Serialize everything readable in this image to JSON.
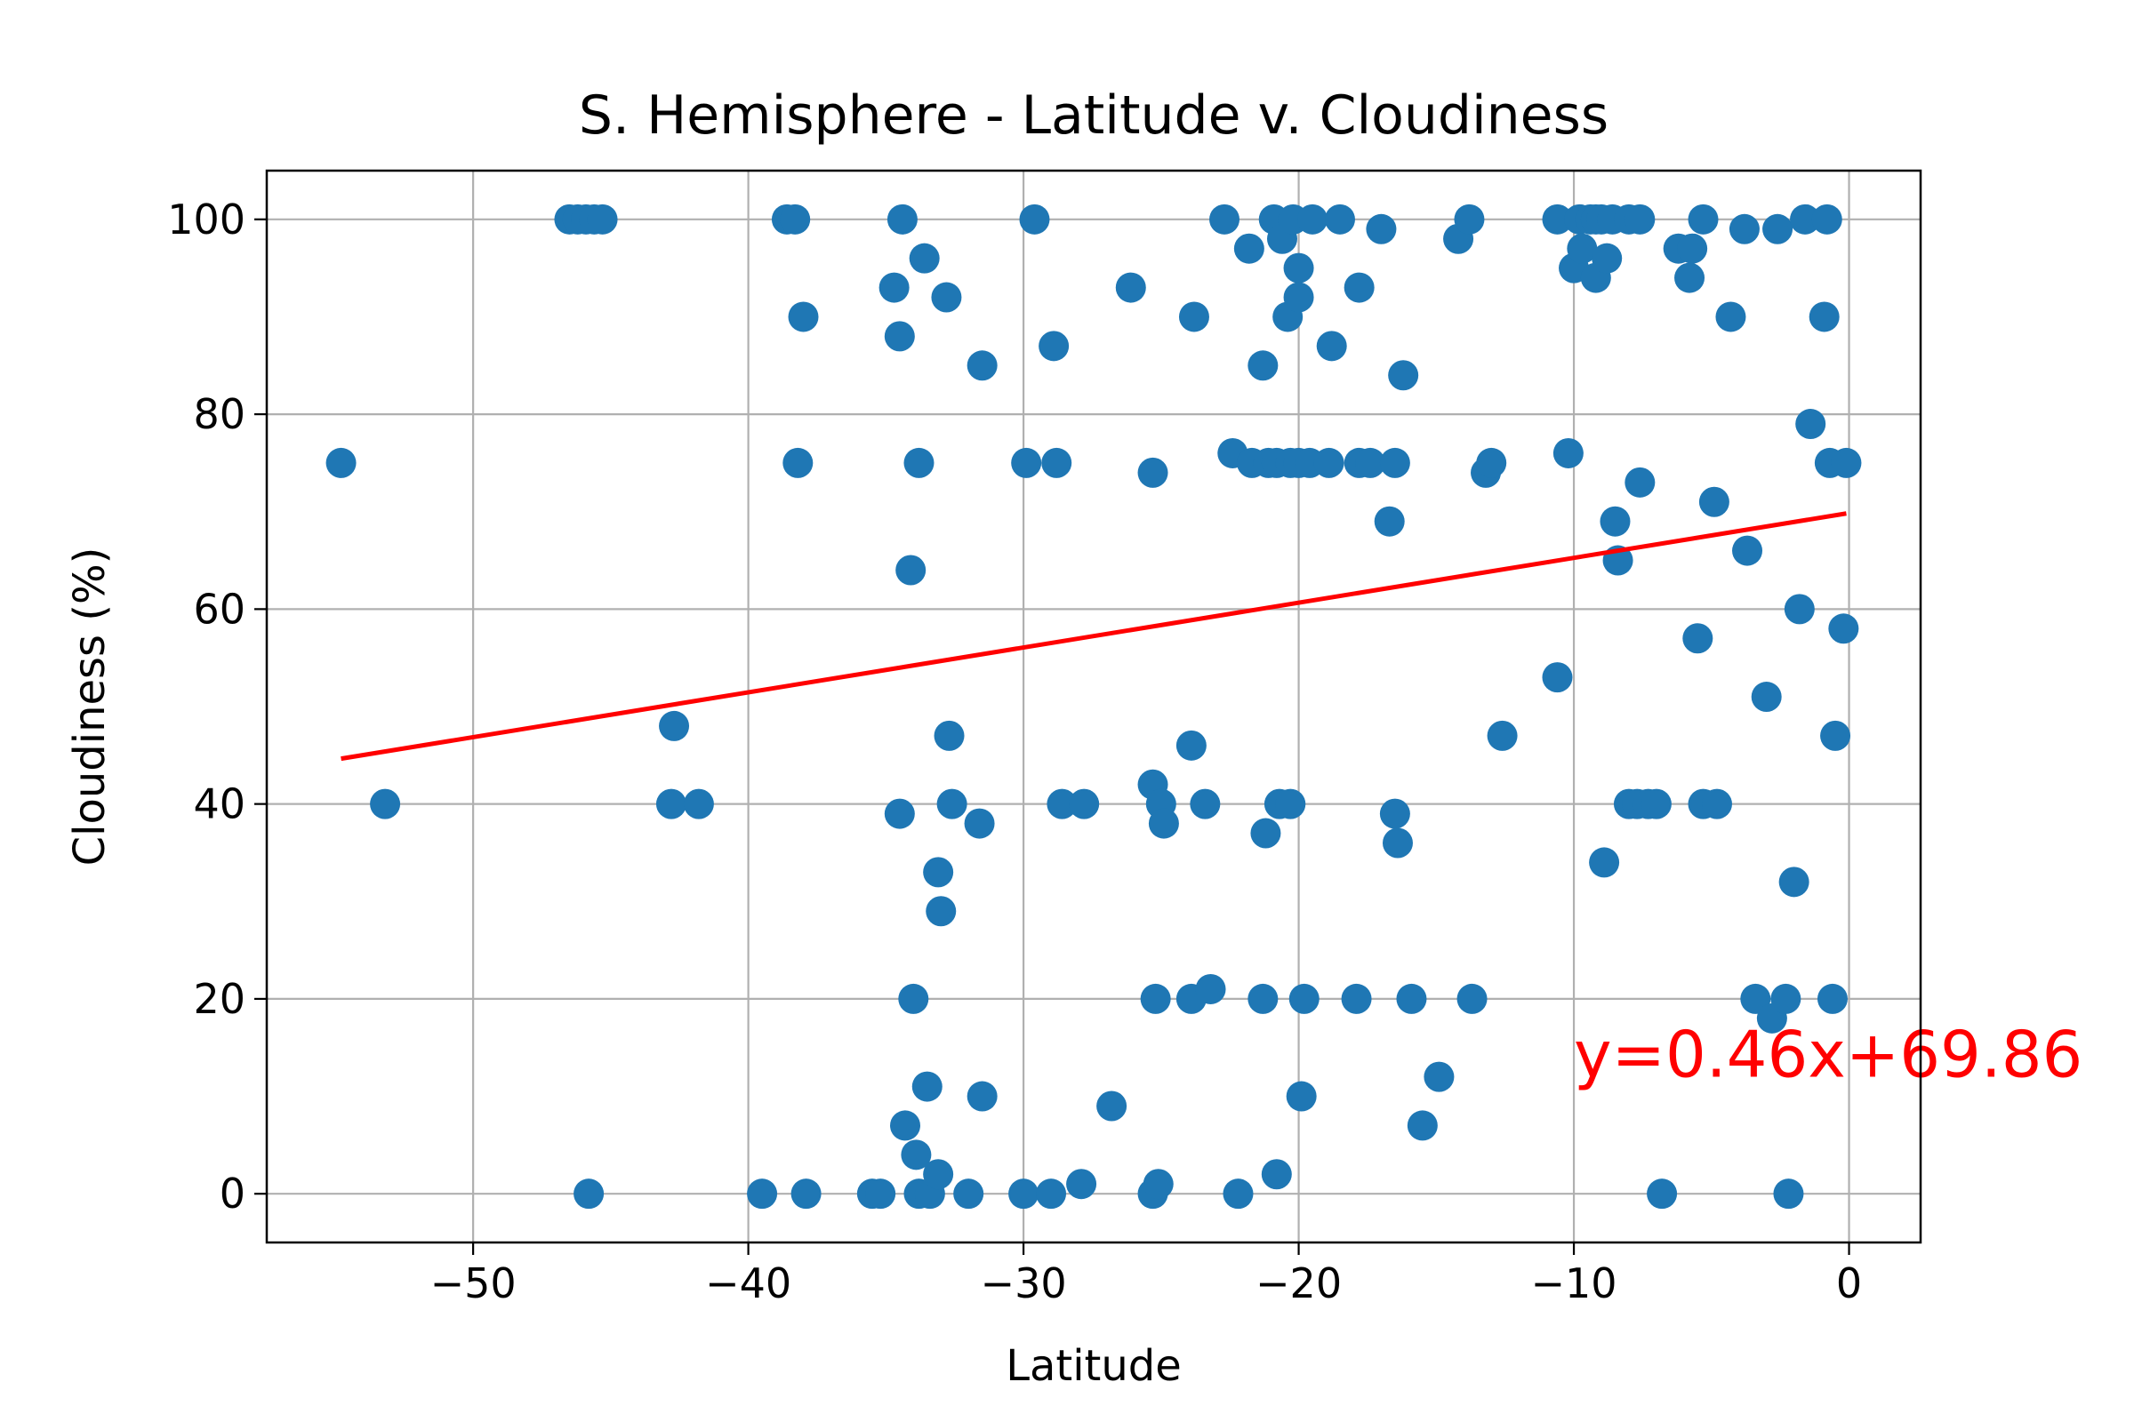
{
  "chart_data": {
    "type": "scatter",
    "title": "S. Hemisphere - Latitude v. Cloudiness",
    "xlabel": "Latitude",
    "ylabel": "Cloudiness (%)",
    "xlim": [
      -57.5,
      2.6
    ],
    "ylim": [
      -5,
      105
    ],
    "xticks": [
      -50,
      -40,
      -30,
      -20,
      -10,
      0
    ],
    "xtick_labels": [
      "−50",
      "−40",
      "−30",
      "−20",
      "−10",
      "0"
    ],
    "yticks": [
      0,
      20,
      40,
      60,
      80,
      100
    ],
    "ytick_labels": [
      "0",
      "20",
      "40",
      "60",
      "80",
      "100"
    ],
    "grid": true,
    "colors": {
      "points": "#1f77b4",
      "regression": "#ff0000",
      "grid": "#b0b0b0",
      "axes": "#000000"
    },
    "regression": {
      "equation": "y=0.46x+69.86",
      "slope": 0.46,
      "intercept": 69.86,
      "x_range": [
        -54.8,
        -0.1
      ],
      "annotation_x": -10,
      "annotation_y": 12
    },
    "points": [
      [
        -54.8,
        75
      ],
      [
        -53.2,
        40
      ],
      [
        -46.5,
        100
      ],
      [
        -46.2,
        100
      ],
      [
        -45.9,
        100
      ],
      [
        -45.6,
        100
      ],
      [
        -45.3,
        100
      ],
      [
        -45.8,
        0
      ],
      [
        -42.8,
        40
      ],
      [
        -42.7,
        48
      ],
      [
        -41.8,
        40
      ],
      [
        -39.5,
        0
      ],
      [
        -38.6,
        100
      ],
      [
        -38.3,
        100
      ],
      [
        -38.2,
        75
      ],
      [
        -38.0,
        90
      ],
      [
        -37.9,
        0
      ],
      [
        -35.5,
        0
      ],
      [
        -35.2,
        0
      ],
      [
        -34.7,
        93
      ],
      [
        -34.5,
        88
      ],
      [
        -34.4,
        100
      ],
      [
        -34.5,
        39
      ],
      [
        -34.3,
        7
      ],
      [
        -34.1,
        64
      ],
      [
        -34.0,
        20
      ],
      [
        -33.9,
        4
      ],
      [
        -33.8,
        75
      ],
      [
        -33.6,
        96
      ],
      [
        -33.8,
        0
      ],
      [
        -33.5,
        11
      ],
      [
        -33.4,
        0
      ],
      [
        -33.1,
        2
      ],
      [
        -33.1,
        33
      ],
      [
        -33.0,
        29
      ],
      [
        -32.8,
        92
      ],
      [
        -32.7,
        47
      ],
      [
        -32.6,
        40
      ],
      [
        -32.0,
        0
      ],
      [
        -31.5,
        85
      ],
      [
        -31.6,
        38
      ],
      [
        -31.5,
        10
      ],
      [
        -30.0,
        0
      ],
      [
        -29.9,
        75
      ],
      [
        -29.6,
        100
      ],
      [
        -29.0,
        0
      ],
      [
        -28.9,
        87
      ],
      [
        -28.8,
        75
      ],
      [
        -28.6,
        40
      ],
      [
        -27.9,
        1
      ],
      [
        -27.8,
        40
      ],
      [
        -26.8,
        9
      ],
      [
        -26.1,
        93
      ],
      [
        -25.3,
        0
      ],
      [
        -25.3,
        42
      ],
      [
        -25.3,
        74
      ],
      [
        -25.2,
        20
      ],
      [
        -25.1,
        1
      ],
      [
        -25.0,
        40
      ],
      [
        -24.9,
        38
      ],
      [
        -23.9,
        20
      ],
      [
        -23.9,
        46
      ],
      [
        -23.8,
        90
      ],
      [
        -23.4,
        40
      ],
      [
        -23.2,
        21
      ],
      [
        -22.7,
        100
      ],
      [
        -22.4,
        76
      ],
      [
        -22.2,
        0
      ],
      [
        -21.8,
        97
      ],
      [
        -21.7,
        75
      ],
      [
        -21.3,
        85
      ],
      [
        -21.3,
        20
      ],
      [
        -21.2,
        37
      ],
      [
        -21.1,
        75
      ],
      [
        -20.9,
        100
      ],
      [
        -20.8,
        75
      ],
      [
        -20.8,
        2
      ],
      [
        -20.7,
        40
      ],
      [
        -20.6,
        98
      ],
      [
        -20.4,
        90
      ],
      [
        -20.3,
        40
      ],
      [
        -20.3,
        75
      ],
      [
        -20.2,
        100
      ],
      [
        -20.0,
        75
      ],
      [
        -20.0,
        95
      ],
      [
        -20.0,
        92
      ],
      [
        -19.9,
        10
      ],
      [
        -19.8,
        20
      ],
      [
        -19.6,
        75
      ],
      [
        -19.5,
        100
      ],
      [
        -18.9,
        75
      ],
      [
        -18.8,
        87
      ],
      [
        -18.5,
        100
      ],
      [
        -17.9,
        20
      ],
      [
        -17.8,
        75
      ],
      [
        -17.8,
        93
      ],
      [
        -17.4,
        75
      ],
      [
        -17.0,
        99
      ],
      [
        -16.7,
        69
      ],
      [
        -16.5,
        75
      ],
      [
        -16.5,
        39
      ],
      [
        -16.4,
        36
      ],
      [
        -16.2,
        84
      ],
      [
        -15.9,
        20
      ],
      [
        -15.5,
        7
      ],
      [
        -14.9,
        12
      ],
      [
        -14.2,
        98
      ],
      [
        -13.8,
        100
      ],
      [
        -13.7,
        20
      ],
      [
        -13.2,
        74
      ],
      [
        -13.0,
        75
      ],
      [
        -12.6,
        47
      ],
      [
        -10.6,
        100
      ],
      [
        -10.6,
        53
      ],
      [
        -10.2,
        76
      ],
      [
        -10.0,
        95
      ],
      [
        -9.8,
        100
      ],
      [
        -9.7,
        97
      ],
      [
        -9.4,
        100
      ],
      [
        -9.2,
        100
      ],
      [
        -9.2,
        94
      ],
      [
        -9.0,
        100
      ],
      [
        -8.9,
        34
      ],
      [
        -8.8,
        96
      ],
      [
        -8.6,
        100
      ],
      [
        -8.5,
        69
      ],
      [
        -8.4,
        65
      ],
      [
        -8.0,
        40
      ],
      [
        -8.0,
        100
      ],
      [
        -7.7,
        40
      ],
      [
        -7.6,
        100
      ],
      [
        -7.6,
        73
      ],
      [
        -7.3,
        40
      ],
      [
        -7.0,
        40
      ],
      [
        -6.8,
        0
      ],
      [
        -6.2,
        97
      ],
      [
        -5.8,
        94
      ],
      [
        -5.7,
        97
      ],
      [
        -5.5,
        57
      ],
      [
        -5.3,
        100
      ],
      [
        -5.3,
        40
      ],
      [
        -4.9,
        71
      ],
      [
        -4.8,
        40
      ],
      [
        -4.3,
        90
      ],
      [
        -3.8,
        99
      ],
      [
        -3.7,
        66
      ],
      [
        -3.4,
        20
      ],
      [
        -3.0,
        51
      ],
      [
        -2.8,
        18
      ],
      [
        -2.6,
        99
      ],
      [
        -2.3,
        20
      ],
      [
        -2.2,
        0
      ],
      [
        -2.0,
        32
      ],
      [
        -1.8,
        60
      ],
      [
        -1.6,
        100
      ],
      [
        -1.4,
        79
      ],
      [
        -0.8,
        100
      ],
      [
        -0.9,
        90
      ],
      [
        -0.7,
        75
      ],
      [
        -0.6,
        20
      ],
      [
        -0.5,
        47
      ],
      [
        -0.1,
        75
      ],
      [
        -0.2,
        58
      ]
    ]
  }
}
